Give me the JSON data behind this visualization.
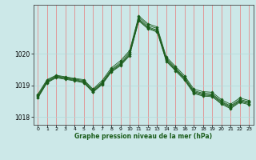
{
  "xlabel": "Graphe pression niveau de la mer (hPa)",
  "background_color": "#cce8e8",
  "grid_color_v": "#e87878",
  "grid_color_h": "#b0d8d8",
  "line_color": "#1a5c1a",
  "xlim": [
    -0.5,
    23.5
  ],
  "ylim": [
    1017.75,
    1021.55
  ],
  "yticks": [
    1018,
    1019,
    1020
  ],
  "xticks": [
    0,
    1,
    2,
    3,
    4,
    5,
    6,
    7,
    8,
    9,
    10,
    11,
    12,
    13,
    14,
    15,
    16,
    17,
    18,
    19,
    20,
    21,
    22,
    23
  ],
  "series": [
    [
      1018.72,
      1019.18,
      1019.32,
      1019.27,
      1019.22,
      1019.18,
      1018.88,
      1019.15,
      1019.55,
      1019.78,
      1020.1,
      1021.2,
      1020.95,
      1020.85,
      1019.9,
      1019.6,
      1019.3,
      1018.88,
      1018.8,
      1018.78,
      1018.55,
      1018.4,
      1018.6,
      1018.52
    ],
    [
      1018.68,
      1019.15,
      1019.3,
      1019.25,
      1019.2,
      1019.15,
      1018.85,
      1019.1,
      1019.5,
      1019.72,
      1020.05,
      1021.15,
      1020.9,
      1020.8,
      1019.85,
      1019.55,
      1019.25,
      1018.83,
      1018.75,
      1018.73,
      1018.5,
      1018.35,
      1018.55,
      1018.48
    ],
    [
      1018.65,
      1019.12,
      1019.28,
      1019.23,
      1019.18,
      1019.12,
      1018.82,
      1019.07,
      1019.47,
      1019.68,
      1020.0,
      1021.1,
      1020.85,
      1020.75,
      1019.82,
      1019.52,
      1019.22,
      1018.8,
      1018.72,
      1018.7,
      1018.47,
      1018.32,
      1018.52,
      1018.45
    ],
    [
      1018.62,
      1019.1,
      1019.26,
      1019.21,
      1019.16,
      1019.1,
      1018.8,
      1019.05,
      1019.44,
      1019.65,
      1019.97,
      1021.07,
      1020.82,
      1020.72,
      1019.79,
      1019.49,
      1019.19,
      1018.77,
      1018.69,
      1018.67,
      1018.44,
      1018.29,
      1018.49,
      1018.42
    ],
    [
      1018.6,
      1019.08,
      1019.24,
      1019.19,
      1019.14,
      1019.08,
      1018.78,
      1019.02,
      1019.42,
      1019.62,
      1019.94,
      1021.04,
      1020.79,
      1020.69,
      1019.76,
      1019.46,
      1019.16,
      1018.74,
      1018.66,
      1018.64,
      1018.41,
      1018.26,
      1018.46,
      1018.39
    ]
  ]
}
